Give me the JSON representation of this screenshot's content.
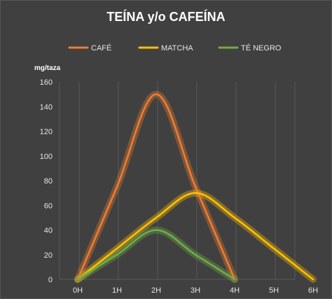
{
  "chart_data": {
    "type": "line",
    "title": "TEÍNA y/o CAFEÍNA",
    "ylabel": "mg/taza",
    "xlabel": "",
    "categories": [
      "0H",
      "1H",
      "2H",
      "3H",
      "4H",
      "5H",
      "6H"
    ],
    "ylim": [
      0,
      160
    ],
    "yticks": [
      0,
      20,
      40,
      60,
      80,
      100,
      120,
      140,
      160
    ],
    "grid": "vertical",
    "legend": "top",
    "smooth": true,
    "series": [
      {
        "name": "CAFÉ",
        "color": "#ed7d31",
        "values": [
          0,
          75,
          150,
          75,
          0,
          null,
          null
        ]
      },
      {
        "name": "MATCHA",
        "color": "#ffc000",
        "values": [
          0,
          25,
          50,
          70,
          50,
          25,
          0
        ]
      },
      {
        "name": "TÉ NEGRO",
        "color": "#70ad47",
        "values": [
          0,
          20,
          40,
          20,
          0,
          null,
          null
        ]
      }
    ]
  }
}
